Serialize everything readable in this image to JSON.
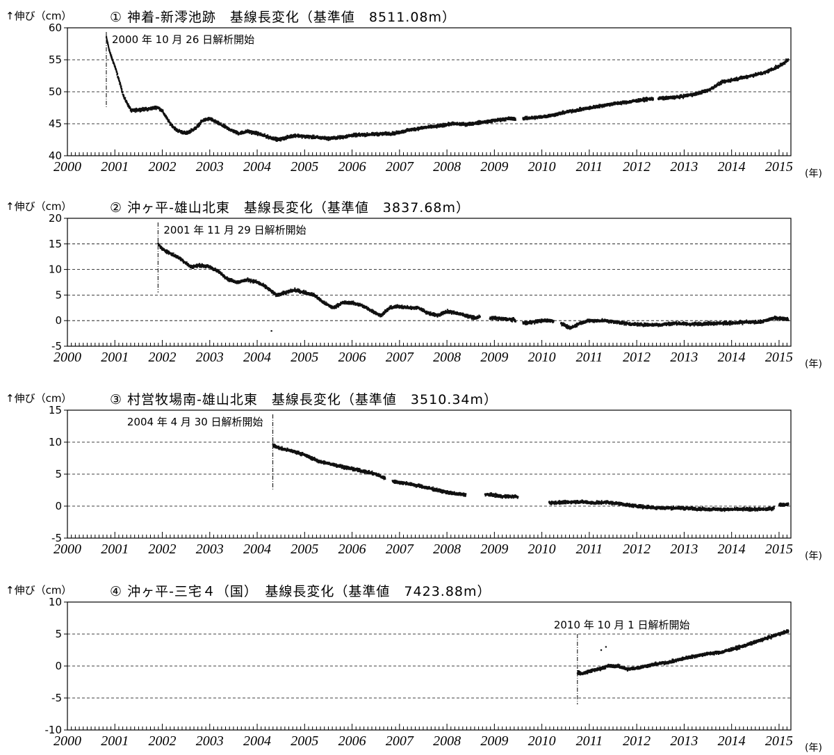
{
  "chart_data": [
    {
      "type": "scatter",
      "ylabel": "↑伸び（cm）",
      "title": "① 神着-新澪池跡　基線長変化（基準値　8511.08m）",
      "x_unit": "(年)",
      "xlim": [
        2000,
        2015.25
      ],
      "ylim": [
        40,
        60
      ],
      "yticks": [
        "40",
        "45",
        "50",
        "55",
        "60"
      ],
      "xticks": [
        "2000",
        "2001",
        "2002",
        "2003",
        "2004",
        "2005",
        "2006",
        "2007",
        "2008",
        "2009",
        "2010",
        "2011",
        "2012",
        "2013",
        "2014",
        "2015"
      ],
      "grid_y": [
        45,
        50,
        55
      ],
      "annotation": {
        "text": "2000 年 10 月 26 日解析開始",
        "x": 2000.82
      },
      "series": [
        {
          "x": [
            2000.82,
            2000.9,
            2001.0,
            2001.1,
            2001.2,
            2001.35,
            2001.5,
            2001.7,
            2001.9,
            2002.0,
            2002.15,
            2002.3,
            2002.5,
            2002.7,
            2002.85,
            2003.0,
            2003.2,
            2003.4,
            2003.6,
            2003.8,
            2004.0,
            2004.2,
            2004.45,
            2004.6,
            2004.8,
            2005.0,
            2005.2,
            2005.5,
            2005.8,
            2006.0,
            2006.3,
            2006.6,
            2006.9,
            2007.2,
            2007.5,
            2007.8,
            2008.1,
            2008.4,
            2008.7,
            2009.0,
            2009.3,
            2009.45,
            2009.6,
            2009.9,
            2010.2,
            2010.5,
            2010.8,
            2011.1,
            2011.4,
            2011.7,
            2012.0,
            2012.3,
            2012.6,
            2012.9,
            2013.2,
            2013.5,
            2013.8,
            2014.1,
            2014.4,
            2014.7,
            2015.0,
            2015.2
          ],
          "y": [
            58.5,
            56.0,
            54.0,
            51.5,
            49.0,
            47.0,
            47.2,
            47.3,
            47.6,
            47.0,
            45.2,
            44.0,
            43.5,
            44.3,
            45.5,
            45.8,
            45.0,
            44.2,
            43.5,
            43.8,
            43.5,
            43.0,
            42.5,
            42.8,
            43.2,
            43.0,
            42.9,
            42.7,
            42.9,
            43.2,
            43.3,
            43.4,
            43.5,
            44.0,
            44.4,
            44.6,
            45.0,
            44.9,
            45.2,
            45.5,
            45.8,
            45.8,
            45.8,
            46.0,
            46.3,
            46.8,
            47.2,
            47.6,
            48.0,
            48.3,
            48.6,
            48.9,
            49.0,
            49.2,
            49.6,
            50.2,
            51.5,
            52.0,
            52.5,
            53.0,
            54.0,
            55.0
          ],
          "gaps": [
            [
              2009.45,
              2009.6
            ],
            [
              2012.35,
              2012.45
            ]
          ]
        }
      ]
    },
    {
      "type": "scatter",
      "ylabel": "↑伸び（cm）",
      "title": "② 沖ヶ平-雄山北東　基線長変化（基準値　3837.68m）",
      "x_unit": "(年)",
      "xlim": [
        2000,
        2015.25
      ],
      "ylim": [
        -5,
        20
      ],
      "yticks": [
        "-5",
        "0",
        "5",
        "10",
        "15",
        "20"
      ],
      "xticks": [
        "2000",
        "2001",
        "2002",
        "2003",
        "2004",
        "2005",
        "2006",
        "2007",
        "2008",
        "2009",
        "2010",
        "2011",
        "2012",
        "2013",
        "2014",
        "2015"
      ],
      "grid_y": [
        0,
        5,
        10,
        15
      ],
      "annotation": {
        "text": "2001 年 11 月 29 日解析開始",
        "x": 2001.91
      },
      "series": [
        {
          "x": [
            2001.91,
            2002.0,
            2002.2,
            2002.4,
            2002.6,
            2002.8,
            2003.0,
            2003.2,
            2003.4,
            2003.6,
            2003.8,
            2004.0,
            2004.2,
            2004.4,
            2004.6,
            2004.8,
            2005.0,
            2005.2,
            2005.4,
            2005.6,
            2005.8,
            2006.0,
            2006.2,
            2006.4,
            2006.6,
            2006.8,
            2007.0,
            2007.2,
            2007.4,
            2007.6,
            2007.8,
            2008.0,
            2008.2,
            2008.4,
            2008.6,
            2008.7,
            2008.9,
            2009.0,
            2009.2,
            2009.4,
            2009.6,
            2009.8,
            2010.0,
            2010.2,
            2010.4,
            2010.6,
            2010.8,
            2011.0,
            2011.3,
            2011.6,
            2011.9,
            2012.2,
            2012.5,
            2012.8,
            2013.1,
            2013.4,
            2013.7,
            2014.0,
            2014.3,
            2014.6,
            2014.9,
            2015.0,
            2015.2
          ],
          "y": [
            15.0,
            14.0,
            13.0,
            12.0,
            10.5,
            10.8,
            10.5,
            9.5,
            8.0,
            7.5,
            8.0,
            7.5,
            6.5,
            5.0,
            5.5,
            6.0,
            5.5,
            5.0,
            3.5,
            2.5,
            3.5,
            3.5,
            3.0,
            2.0,
            1.0,
            2.5,
            2.8,
            2.5,
            2.5,
            1.5,
            1.0,
            1.8,
            1.5,
            1.0,
            0.5,
            0.8,
            0.5,
            0.5,
            0.3,
            0.2,
            -0.5,
            -0.3,
            0.0,
            0.0,
            -0.5,
            -1.5,
            -0.5,
            0.0,
            0.0,
            -0.3,
            -0.7,
            -0.8,
            -0.8,
            -0.5,
            -0.7,
            -0.6,
            -0.5,
            -0.5,
            -0.3,
            -0.3,
            0.5,
            0.5,
            0.3
          ],
          "gaps": [
            [
              2008.7,
              2008.9
            ],
            [
              2009.45,
              2009.6
            ],
            [
              2010.25,
              2010.4
            ]
          ],
          "outliers": [
            [
              2004.3,
              -2.0
            ]
          ]
        }
      ]
    },
    {
      "type": "scatter",
      "ylabel": "↑伸び（cm）",
      "title": "③ 村営牧場南-雄山北東　基線長変化（基準値　3510.34m）",
      "x_unit": "(年)",
      "xlim": [
        2000,
        2015.25
      ],
      "ylim": [
        -5,
        15
      ],
      "yticks": [
        "-5",
        "0",
        "5",
        "10",
        "15"
      ],
      "xticks": [
        "2000",
        "2001",
        "2002",
        "2003",
        "2004",
        "2005",
        "2006",
        "2007",
        "2008",
        "2009",
        "2010",
        "2011",
        "2012",
        "2013",
        "2014",
        "2015"
      ],
      "grid_y": [
        0,
        5,
        10
      ],
      "annotation": {
        "text": "2004 年 4 月 30 日解析開始",
        "x": 2004.33
      },
      "series": [
        {
          "x": [
            2004.33,
            2004.5,
            2004.8,
            2005.0,
            2005.3,
            2005.6,
            2005.9,
            2006.2,
            2006.5,
            2006.65,
            2006.9,
            2007.2,
            2007.5,
            2007.8,
            2008.1,
            2008.35,
            2008.9,
            2009.2,
            2009.45,
            2010.2,
            2010.5,
            2010.8,
            2011.1,
            2011.4,
            2011.7,
            2012.0,
            2012.3,
            2012.6,
            2012.9,
            2013.2,
            2013.5,
            2013.8,
            2014.1,
            2014.4,
            2014.7,
            2014.85,
            2015.0,
            2015.2
          ],
          "y": [
            9.5,
            9.0,
            8.5,
            8.0,
            7.0,
            6.5,
            6.0,
            5.5,
            5.0,
            4.5,
            3.8,
            3.5,
            3.0,
            2.5,
            2.0,
            1.8,
            1.8,
            1.5,
            1.5,
            0.5,
            0.6,
            0.7,
            0.5,
            0.6,
            0.3,
            0.0,
            -0.2,
            -0.3,
            -0.3,
            -0.4,
            -0.5,
            -0.5,
            -0.5,
            -0.5,
            -0.5,
            -0.4,
            0.2,
            0.3
          ],
          "gaps": [
            [
              2006.7,
              2006.85
            ],
            [
              2008.4,
              2008.8
            ],
            [
              2009.5,
              2010.15
            ],
            [
              2014.9,
              2015.0
            ]
          ]
        }
      ]
    },
    {
      "type": "scatter",
      "ylabel": "↑伸び（cm）",
      "title": "④ 沖ヶ平-三宅４（国）　基線長変化（基準値　7423.88m）",
      "x_unit": "(年)",
      "xlim": [
        2000,
        2015.25
      ],
      "ylim": [
        -10,
        10
      ],
      "yticks": [
        "-10",
        "-5",
        "0",
        "5",
        "10"
      ],
      "xticks": [
        "2000",
        "2001",
        "2002",
        "2003",
        "2004",
        "2005",
        "2006",
        "2007",
        "2008",
        "2009",
        "2010",
        "2011",
        "2012",
        "2013",
        "2014",
        "2015"
      ],
      "grid_y": [
        -5,
        0,
        5
      ],
      "annotation": {
        "text": "2010 年 10 月 1 日解析開始",
        "x": 2010.75
      },
      "series": [
        {
          "x": [
            2010.75,
            2010.85,
            2011.0,
            2011.2,
            2011.4,
            2011.6,
            2011.8,
            2012.0,
            2012.2,
            2012.4,
            2012.6,
            2012.8,
            2013.0,
            2013.2,
            2013.4,
            2013.6,
            2013.8,
            2014.0,
            2014.2,
            2014.4,
            2014.6,
            2014.8,
            2015.0,
            2015.2
          ],
          "y": [
            -1.0,
            -1.2,
            -0.8,
            -0.5,
            0.0,
            0.0,
            -0.5,
            -0.3,
            0.0,
            0.3,
            0.5,
            0.8,
            1.2,
            1.5,
            1.8,
            2.0,
            2.2,
            2.6,
            3.0,
            3.5,
            4.0,
            4.5,
            5.0,
            5.5
          ],
          "gaps": [],
          "outliers": [
            [
              2011.35,
              3.0
            ],
            [
              2011.25,
              2.5
            ]
          ]
        }
      ]
    }
  ]
}
